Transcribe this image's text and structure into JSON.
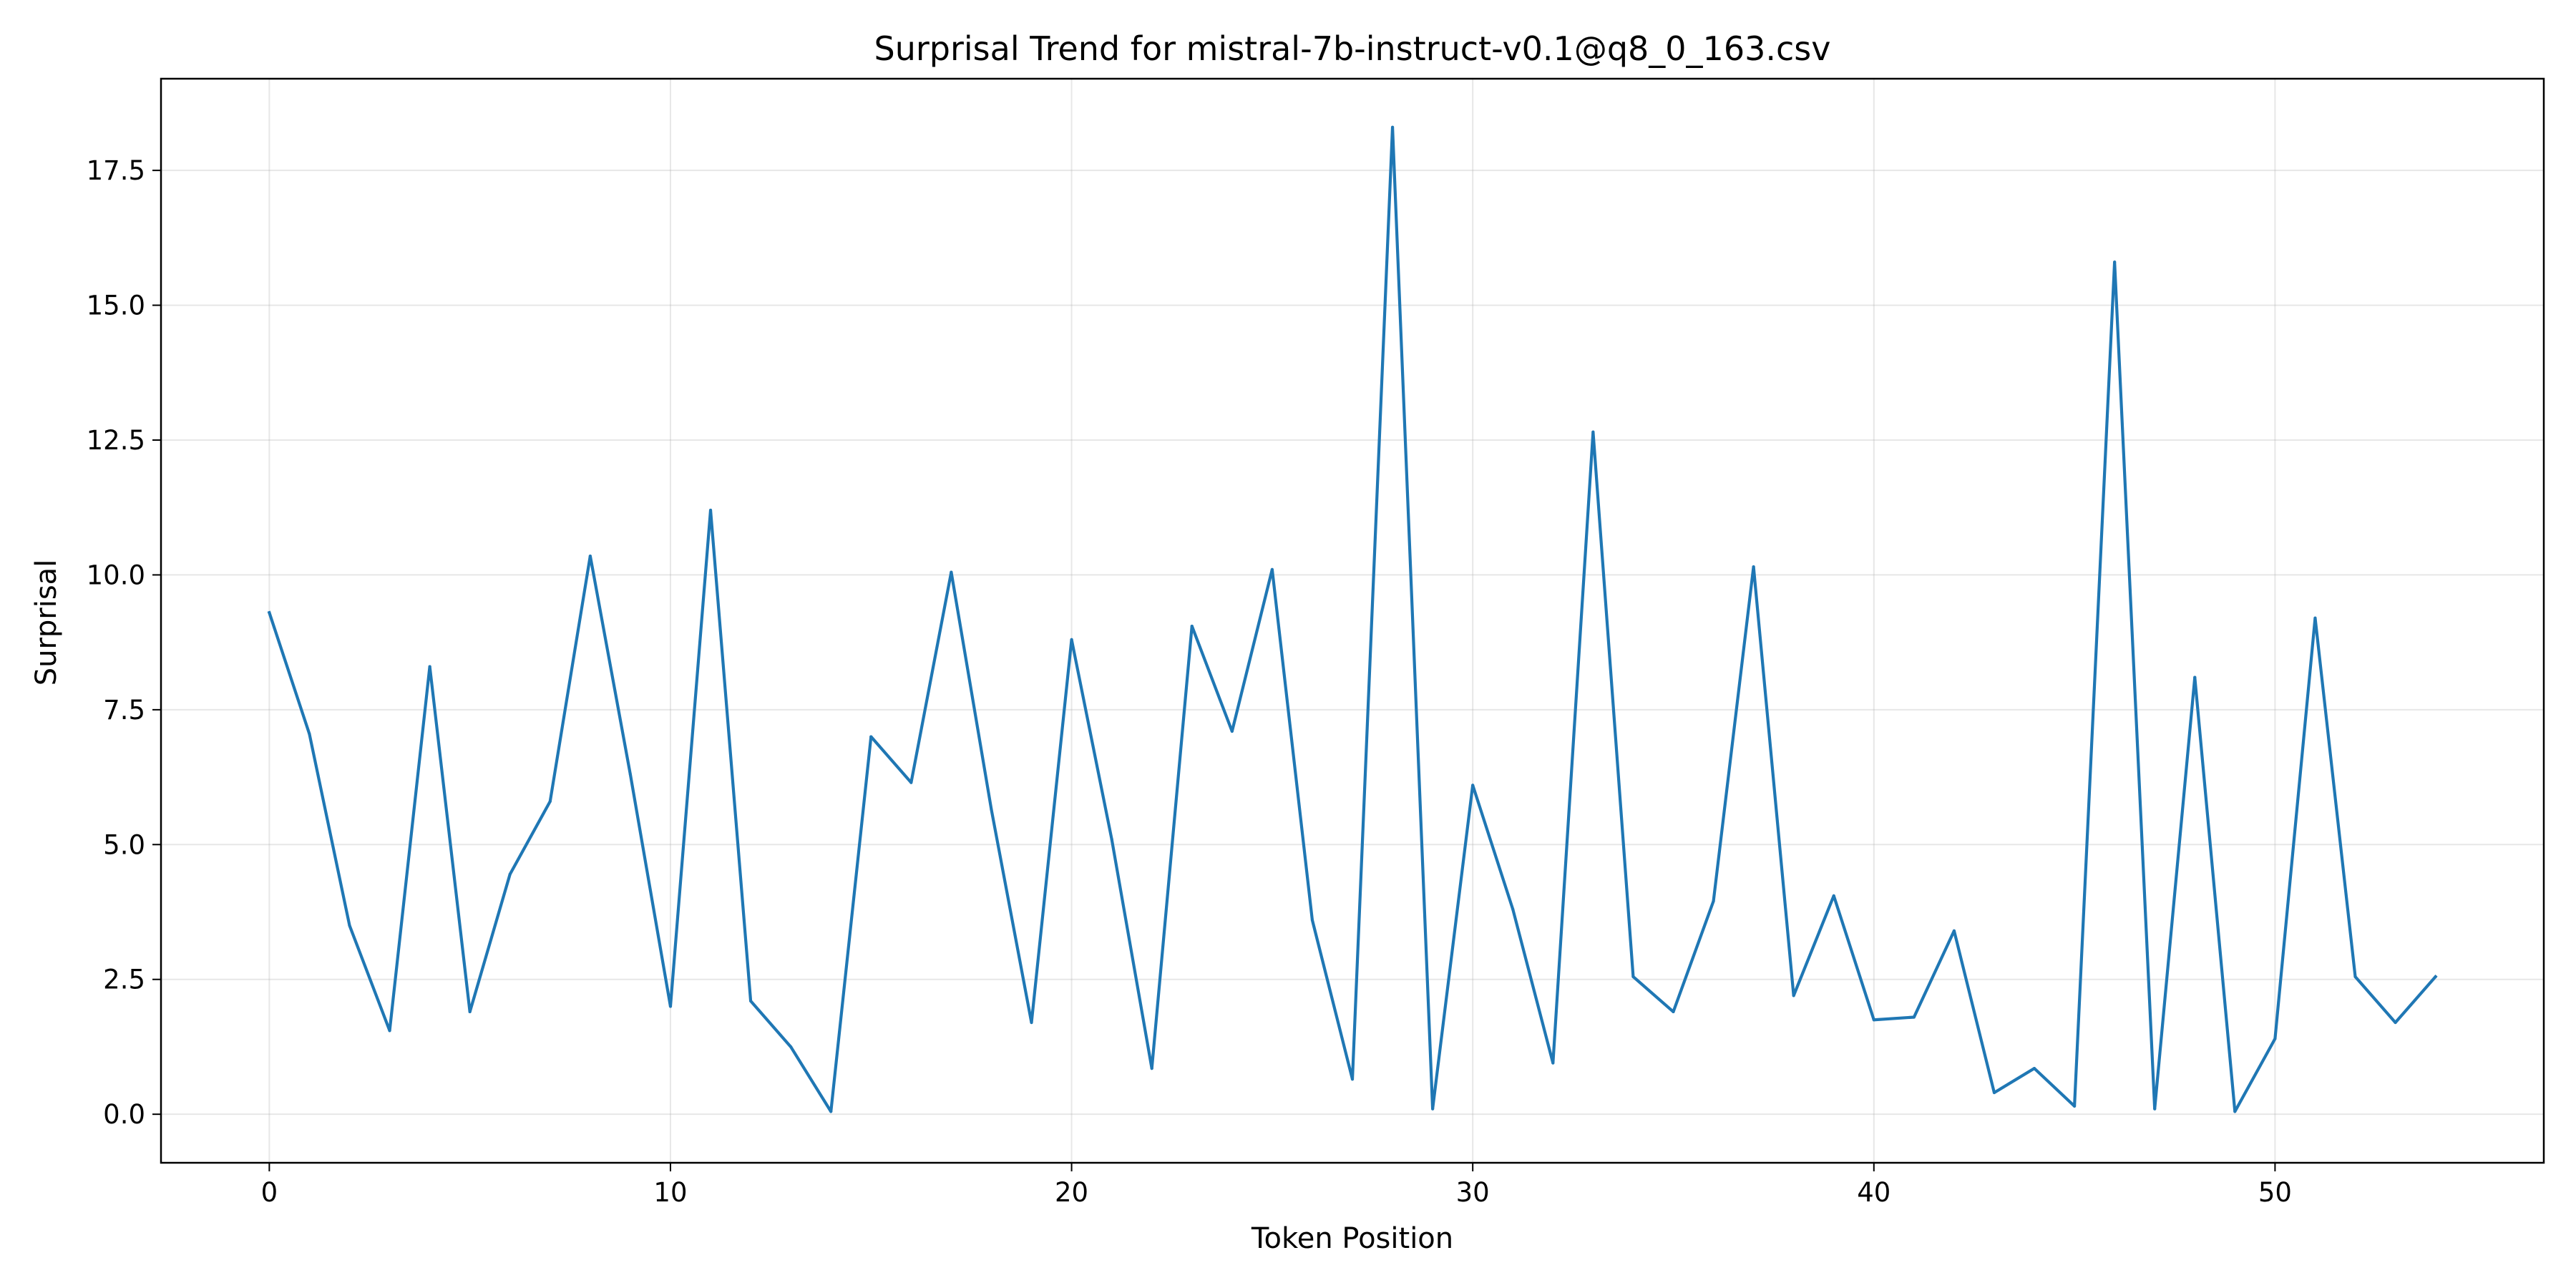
{
  "chart_data": {
    "type": "line",
    "title": "Surprisal Trend for mistral-7b-instruct-v0.1@q8_0_163.csv",
    "xlabel": "Token Position",
    "ylabel": "Surprisal",
    "xlim": [
      -2.7,
      56.7
    ],
    "ylim": [
      -0.9,
      19.2
    ],
    "xticks": [
      0,
      10,
      20,
      30,
      40,
      50
    ],
    "xtick_labels": [
      "0",
      "10",
      "20",
      "30",
      "40",
      "50"
    ],
    "yticks": [
      0.0,
      2.5,
      5.0,
      7.5,
      10.0,
      12.5,
      15.0,
      17.5
    ],
    "ytick_labels": [
      "0.0",
      "2.5",
      "5.0",
      "7.5",
      "10.0",
      "12.5",
      "15.0",
      "17.5"
    ],
    "grid": true,
    "series": [
      {
        "color": "#1f77b4",
        "x": [
          0,
          1,
          2,
          3,
          4,
          5,
          6,
          7,
          8,
          9,
          10,
          11,
          12,
          13,
          14,
          15,
          16,
          17,
          18,
          19,
          20,
          21,
          22,
          23,
          24,
          25,
          26,
          27,
          28,
          29,
          30,
          31,
          32,
          33,
          34,
          35,
          36,
          37,
          38,
          39,
          40,
          41,
          42,
          43,
          44,
          45,
          46,
          47,
          48,
          49,
          50,
          51,
          52,
          53,
          54
        ],
        "values": [
          9.3,
          7.05,
          3.5,
          1.55,
          8.3,
          1.9,
          4.45,
          5.8,
          10.35,
          6.3,
          2.0,
          11.2,
          2.1,
          1.25,
          0.05,
          7.0,
          6.15,
          10.05,
          5.65,
          1.7,
          8.8,
          5.1,
          0.85,
          9.05,
          7.1,
          10.1,
          3.6,
          0.65,
          18.3,
          0.1,
          6.1,
          3.8,
          0.95,
          12.65,
          2.55,
          1.9,
          3.95,
          10.15,
          2.2,
          4.05,
          1.75,
          1.8,
          3.4,
          0.4,
          0.85,
          0.15,
          15.8,
          0.1,
          8.1,
          0.05,
          1.4,
          9.2,
          2.55,
          1.7,
          2.55
        ]
      }
    ]
  }
}
